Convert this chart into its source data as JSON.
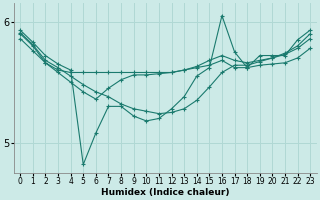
{
  "xlabel": "Humidex (Indice chaleur)",
  "background_color": "#cceae7",
  "grid_color": "#b0d8d4",
  "line_color": "#1a7a6e",
  "xlim": [
    -0.5,
    23.5
  ],
  "ylim": [
    4.75,
    6.15
  ],
  "yticks": [
    5,
    6
  ],
  "xticks": [
    0,
    1,
    2,
    3,
    4,
    5,
    6,
    7,
    8,
    9,
    10,
    11,
    12,
    13,
    14,
    15,
    16,
    17,
    18,
    19,
    20,
    21,
    22,
    23
  ],
  "series": [
    [
      5.93,
      5.83,
      5.72,
      5.65,
      5.6,
      4.82,
      5.08,
      5.3,
      5.3,
      5.22,
      5.18,
      5.2,
      5.28,
      5.38,
      5.55,
      5.62,
      6.05,
      5.75,
      5.62,
      5.72,
      5.72,
      5.72,
      5.85,
      5.93
    ],
    [
      5.86,
      5.76,
      5.66,
      5.6,
      5.58,
      5.58,
      5.58,
      5.58,
      5.58,
      5.58,
      5.58,
      5.58,
      5.58,
      5.6,
      5.62,
      5.64,
      5.68,
      5.62,
      5.62,
      5.64,
      5.65,
      5.66,
      5.7,
      5.78
    ],
    [
      5.9,
      5.8,
      5.66,
      5.58,
      5.5,
      5.42,
      5.36,
      5.45,
      5.52,
      5.56,
      5.56,
      5.57,
      5.58,
      5.6,
      5.63,
      5.68,
      5.72,
      5.68,
      5.66,
      5.68,
      5.7,
      5.73,
      5.78,
      5.86
    ],
    [
      5.91,
      5.81,
      5.68,
      5.62,
      5.55,
      5.48,
      5.42,
      5.38,
      5.32,
      5.28,
      5.26,
      5.24,
      5.25,
      5.28,
      5.35,
      5.46,
      5.58,
      5.64,
      5.64,
      5.67,
      5.7,
      5.74,
      5.8,
      5.9
    ]
  ]
}
